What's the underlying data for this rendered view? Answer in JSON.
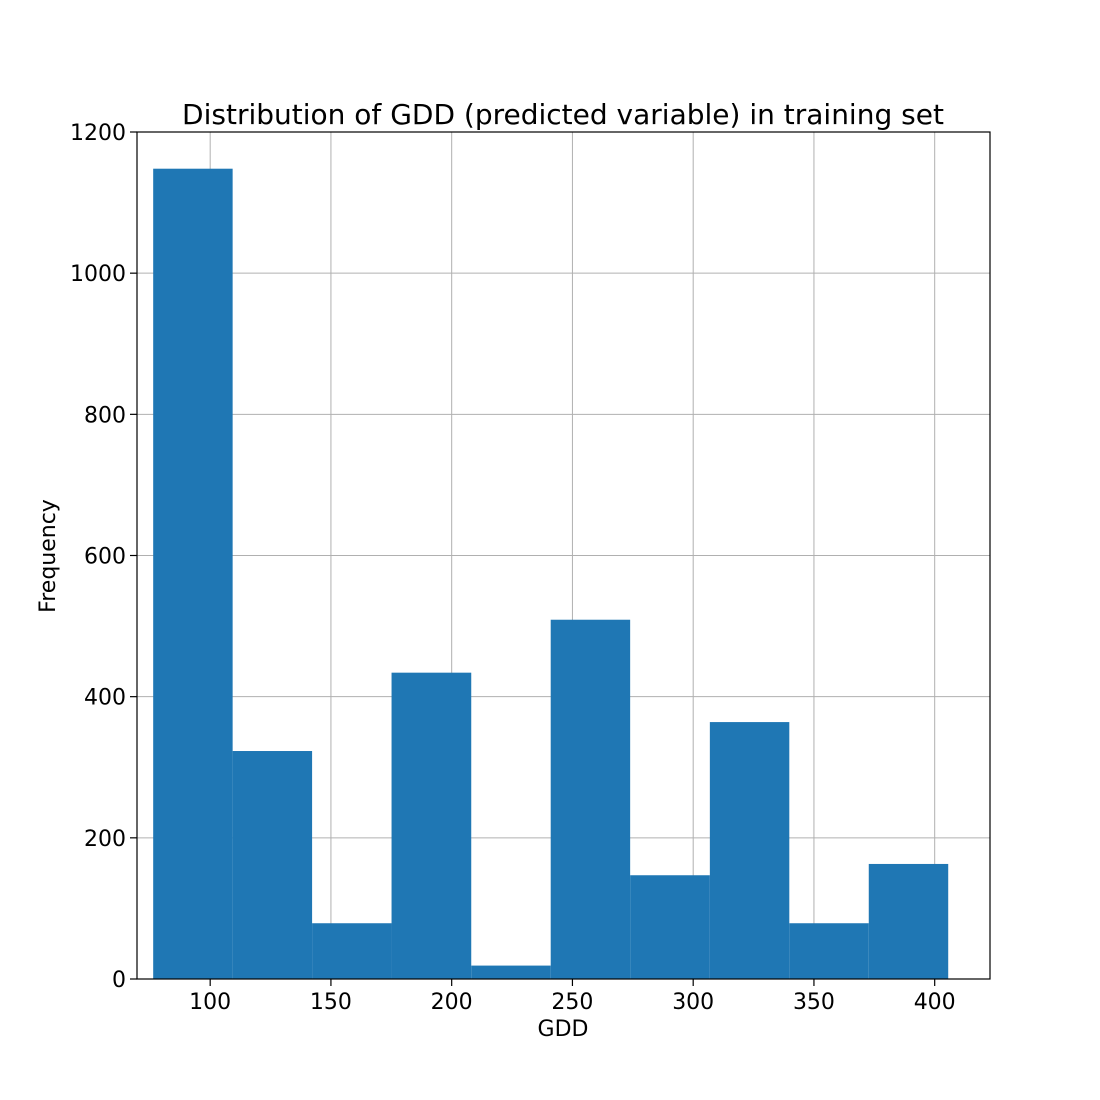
{
  "chart_data": {
    "type": "bar",
    "title": "Distribution of GDD (predicted variable) in training set",
    "xlabel": "GDD",
    "ylabel": "Frequency",
    "xlim": [
      69.7,
      422.9
    ],
    "ylim": [
      0,
      1200
    ],
    "xticks": [
      100,
      150,
      200,
      250,
      300,
      350,
      400
    ],
    "yticks": [
      0,
      200,
      400,
      600,
      800,
      1000,
      1200
    ],
    "grid": true,
    "bar_color": "#1f77b4",
    "bins": [
      {
        "x0": 76.4,
        "x1": 109.3,
        "count": 1148
      },
      {
        "x0": 109.3,
        "x1": 142.2,
        "count": 323
      },
      {
        "x0": 142.2,
        "x1": 175.1,
        "count": 79
      },
      {
        "x0": 175.1,
        "x1": 208.1,
        "count": 434
      },
      {
        "x0": 208.1,
        "x1": 241.0,
        "count": 19
      },
      {
        "x0": 241.0,
        "x1": 273.9,
        "count": 509
      },
      {
        "x0": 273.9,
        "x1": 306.9,
        "count": 147
      },
      {
        "x0": 306.9,
        "x1": 339.8,
        "count": 364
      },
      {
        "x0": 339.8,
        "x1": 372.7,
        "count": 79
      },
      {
        "x0": 372.7,
        "x1": 405.6,
        "count": 163
      }
    ]
  }
}
